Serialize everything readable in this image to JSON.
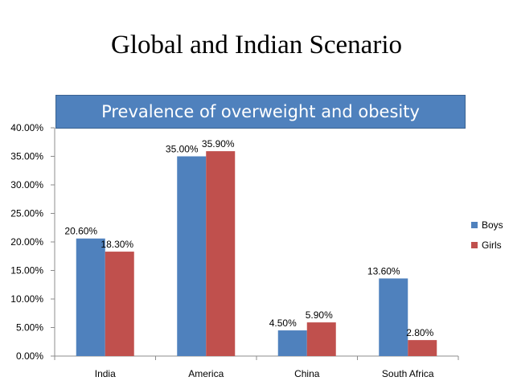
{
  "slide": {
    "title": "Global and Indian Scenario"
  },
  "colors": {
    "banner": "#4f81bd",
    "boys": "#4f81bd",
    "girls": "#c0504d",
    "axis": "#8c8c8c"
  },
  "chart_data": {
    "type": "bar",
    "title": "Prevalence of overweight and obesity",
    "categories": [
      "India",
      "America",
      "China",
      "South Africa"
    ],
    "series": [
      {
        "name": "Boys",
        "values": [
          20.6,
          35.0,
          4.5,
          13.6
        ],
        "labels": [
          "20.60%",
          "35.00%",
          "4.50%",
          "13.60%"
        ]
      },
      {
        "name": "Girls",
        "values": [
          18.3,
          35.9,
          5.9,
          2.8
        ],
        "labels": [
          "18.30%",
          "35.90%",
          "5.90%",
          "2.80%"
        ]
      }
    ],
    "ylim": [
      0,
      40
    ],
    "yticks": [
      0,
      5,
      10,
      15,
      20,
      25,
      30,
      35,
      40
    ],
    "ytick_labels": [
      "0.00%",
      "5.00%",
      "10.00%",
      "15.00%",
      "20.00%",
      "25.00%",
      "30.00%",
      "35.00%",
      "40.00%"
    ],
    "xlabel": "",
    "ylabel": "",
    "legend": "right",
    "grid": false
  }
}
